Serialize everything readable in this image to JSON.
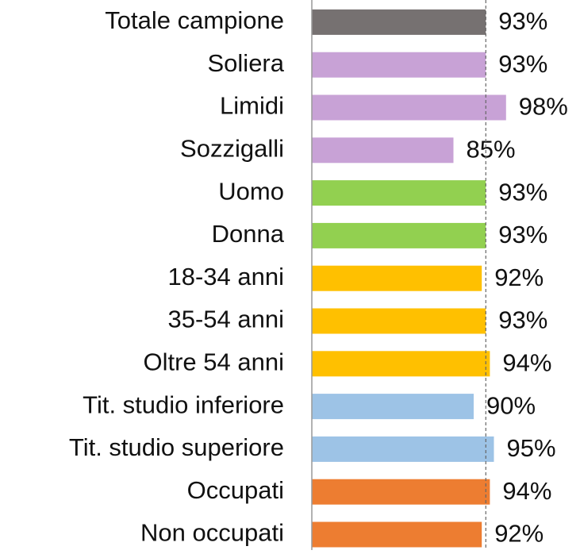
{
  "chart_data": {
    "type": "barh",
    "categories": [
      "Totale campione",
      "Soliera",
      "Limidi",
      "Sozzigalli",
      "Uomo",
      "Donna",
      "18-34 anni",
      "35-54 anni",
      "Oltre 54 anni",
      "Tit. studio inferiore",
      "Tit. studio superiore",
      "Occupati",
      "Non occupati"
    ],
    "values": [
      93,
      93,
      98,
      85,
      93,
      93,
      92,
      93,
      94,
      90,
      95,
      94,
      92
    ],
    "value_labels": [
      "93%",
      "93%",
      "98%",
      "85%",
      "93%",
      "93%",
      "92%",
      "93%",
      "94%",
      "90%",
      "95%",
      "94%",
      "92%"
    ],
    "colors": [
      "#767171",
      "#c8a2d6",
      "#c8a2d6",
      "#c8a2d6",
      "#92d050",
      "#92d050",
      "#ffc000",
      "#ffc000",
      "#ffc000",
      "#9dc3e6",
      "#9dc3e6",
      "#ed7d31",
      "#ed7d31"
    ],
    "xlim": [
      50,
      100
    ],
    "reference_line": 93
  }
}
